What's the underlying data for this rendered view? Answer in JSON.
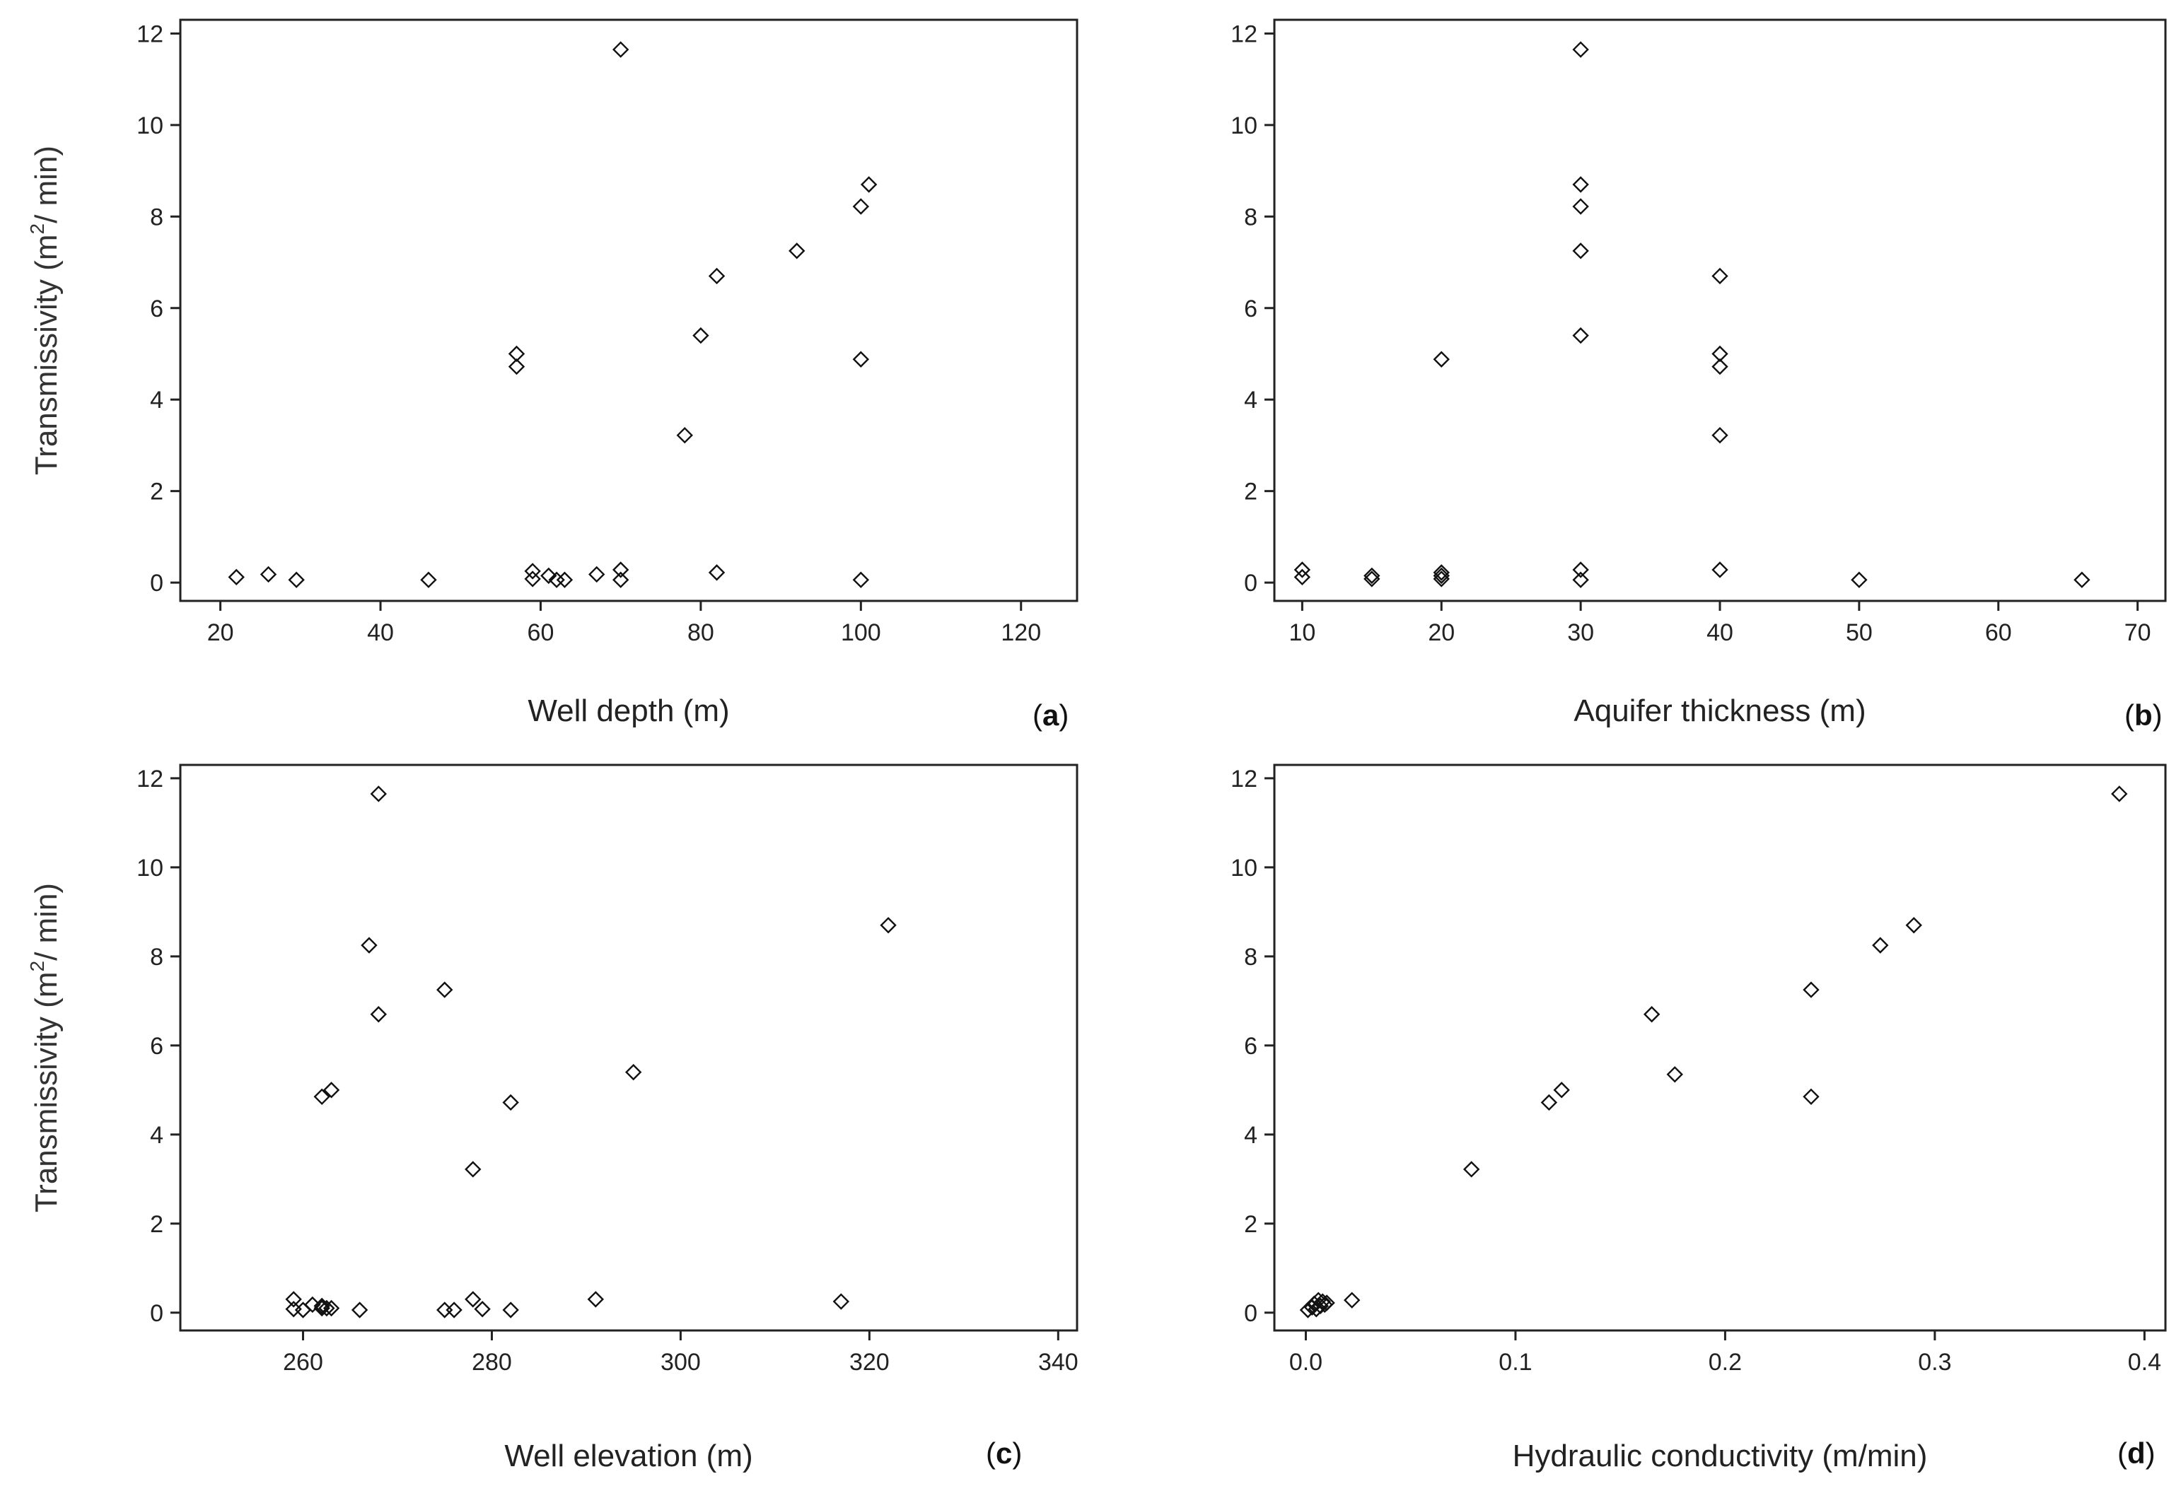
{
  "chart_data": [
    {
      "id": "a",
      "type": "scatter",
      "panel_label": "a",
      "xlabel": "Well depth (m)",
      "ylabel": {
        "pre": "Transmissivity (m",
        "sup": "2",
        "post": "/ min)"
      },
      "xlim": [
        15,
        127
      ],
      "ylim": [
        -0.4,
        12.3
      ],
      "xticks": [
        20,
        40,
        60,
        80,
        100,
        120
      ],
      "yticks": [
        0,
        2,
        4,
        6,
        8,
        10,
        12
      ],
      "points": [
        [
          22,
          0.12
        ],
        [
          26,
          0.18
        ],
        [
          29.5,
          0.06
        ],
        [
          46,
          0.06
        ],
        [
          57,
          5.0
        ],
        [
          57,
          4.72
        ],
        [
          59,
          0.25
        ],
        [
          59,
          0.08
        ],
        [
          61,
          0.15
        ],
        [
          62,
          0.06
        ],
        [
          63,
          0.06
        ],
        [
          67,
          0.18
        ],
        [
          70,
          11.65
        ],
        [
          70,
          0.28
        ],
        [
          70,
          0.06
        ],
        [
          78,
          3.22
        ],
        [
          80,
          5.4
        ],
        [
          82,
          6.7
        ],
        [
          82,
          0.22
        ],
        [
          92,
          7.25
        ],
        [
          100,
          8.22
        ],
        [
          100,
          4.88
        ],
        [
          100,
          0.06
        ],
        [
          101,
          8.7
        ]
      ]
    },
    {
      "id": "b",
      "type": "scatter",
      "panel_label": "b",
      "xlabel": "Aquifer thickness (m)",
      "ylabel": "",
      "xlim": [
        8,
        72
      ],
      "ylim": [
        -0.4,
        12.3
      ],
      "xticks": [
        10,
        20,
        30,
        40,
        50,
        60,
        70
      ],
      "yticks": [
        0,
        2,
        4,
        6,
        8,
        10,
        12
      ],
      "points": [
        [
          10,
          0.28
        ],
        [
          10,
          0.12
        ],
        [
          15,
          0.15
        ],
        [
          15,
          0.08
        ],
        [
          20,
          4.88
        ],
        [
          20,
          0.22
        ],
        [
          20,
          0.15
        ],
        [
          20,
          0.08
        ],
        [
          30,
          11.65
        ],
        [
          30,
          8.7
        ],
        [
          30,
          8.22
        ],
        [
          30,
          7.25
        ],
        [
          30,
          5.4
        ],
        [
          30,
          0.28
        ],
        [
          30,
          0.06
        ],
        [
          40,
          6.7
        ],
        [
          40,
          5.0
        ],
        [
          40,
          4.72
        ],
        [
          40,
          3.22
        ],
        [
          40,
          0.28
        ],
        [
          50,
          0.06
        ],
        [
          66,
          0.06
        ]
      ]
    },
    {
      "id": "c",
      "type": "scatter",
      "panel_label": "c",
      "xlabel": "Well elevation (m)",
      "ylabel": {
        "pre": "Transmissivity (m",
        "sup": "2",
        "post": "/ min)"
      },
      "xlim": [
        247,
        342
      ],
      "ylim": [
        -0.4,
        12.3
      ],
      "xticks": [
        260,
        280,
        300,
        320,
        340
      ],
      "yticks": [
        0,
        2,
        4,
        6,
        8,
        10,
        12
      ],
      "points": [
        [
          259,
          0.3
        ],
        [
          259,
          0.08
        ],
        [
          260,
          0.06
        ],
        [
          261,
          0.18
        ],
        [
          262,
          0.15
        ],
        [
          262,
          0.1
        ],
        [
          262,
          4.85
        ],
        [
          262.5,
          0.1
        ],
        [
          263,
          0.1
        ],
        [
          263,
          5.0
        ],
        [
          266,
          0.06
        ],
        [
          267,
          8.25
        ],
        [
          268,
          11.65
        ],
        [
          268,
          6.7
        ],
        [
          275,
          7.25
        ],
        [
          275,
          0.06
        ],
        [
          276,
          0.06
        ],
        [
          278,
          3.22
        ],
        [
          278,
          0.3
        ],
        [
          279,
          0.08
        ],
        [
          282,
          4.72
        ],
        [
          282,
          0.06
        ],
        [
          291,
          0.3
        ],
        [
          295,
          5.4
        ],
        [
          317,
          0.25
        ],
        [
          322,
          8.7
        ]
      ]
    },
    {
      "id": "d",
      "type": "scatter",
      "panel_label": "d",
      "xlabel": "Hydraulic conductivity (m/min)",
      "ylabel": "",
      "xlim": [
        -0.015,
        0.41
      ],
      "ylim": [
        -0.4,
        12.3
      ],
      "xticks": [
        0.0,
        0.1,
        0.2,
        0.3,
        0.4
      ],
      "xtick_labels": [
        "0.0",
        "0.1",
        "0.2",
        "0.3",
        "0.4"
      ],
      "yticks": [
        0,
        2,
        4,
        6,
        8,
        10,
        12
      ],
      "points": [
        [
          0.001,
          0.06
        ],
        [
          0.003,
          0.12
        ],
        [
          0.004,
          0.2
        ],
        [
          0.005,
          0.08
        ],
        [
          0.006,
          0.28
        ],
        [
          0.007,
          0.15
        ],
        [
          0.008,
          0.25
        ],
        [
          0.009,
          0.18
        ],
        [
          0.01,
          0.22
        ],
        [
          0.022,
          0.28
        ],
        [
          0.079,
          3.22
        ],
        [
          0.116,
          4.72
        ],
        [
          0.122,
          5.0
        ],
        [
          0.165,
          6.7
        ],
        [
          0.176,
          5.35
        ],
        [
          0.241,
          7.25
        ],
        [
          0.241,
          4.85
        ],
        [
          0.274,
          8.25
        ],
        [
          0.29,
          8.7
        ],
        [
          0.388,
          11.65
        ]
      ]
    }
  ]
}
